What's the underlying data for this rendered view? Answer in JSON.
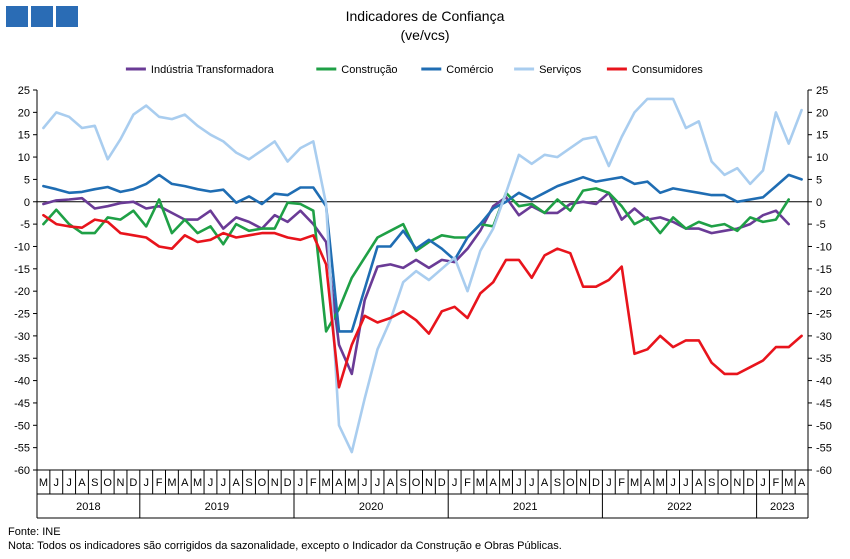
{
  "title": "Indicadores de Confiança",
  "subtitle": "(ve/vcs)",
  "source": "Fonte: INE",
  "note": "Nota: Todos os indicadores são corrigidos da sazonalidade,  excepto o Indicador da Construção e Obras Públicas.",
  "logo_icon": "ine-logo-icon",
  "chart_data": {
    "type": "line",
    "ylim": [
      -60,
      25
    ],
    "yticks": [
      25,
      20,
      15,
      10,
      5,
      0,
      -5,
      -10,
      -15,
      -20,
      -25,
      -30,
      -35,
      -40,
      -45,
      -50,
      -55,
      -60
    ],
    "grid": false,
    "legend_position": "top",
    "month_labels": [
      "M",
      "J",
      "J",
      "A",
      "S",
      "O",
      "N",
      "D",
      "J",
      "F",
      "M",
      "A",
      "M",
      "J",
      "J",
      "A",
      "S",
      "O",
      "N",
      "D",
      "J",
      "F",
      "M",
      "A",
      "M",
      "J",
      "J",
      "A",
      "S",
      "O",
      "N",
      "D",
      "J",
      "F",
      "M",
      "A",
      "M",
      "J",
      "J",
      "A",
      "S",
      "O",
      "N",
      "D",
      "J",
      "F",
      "M",
      "A",
      "M",
      "J",
      "J",
      "A",
      "S",
      "O",
      "N",
      "D",
      "J",
      "F",
      "M",
      "A"
    ],
    "years": [
      {
        "label": "2018",
        "start": 0,
        "end": 7
      },
      {
        "label": "2019",
        "start": 8,
        "end": 19
      },
      {
        "label": "2020",
        "start": 20,
        "end": 31
      },
      {
        "label": "2021",
        "start": 32,
        "end": 43
      },
      {
        "label": "2022",
        "start": 44,
        "end": 55
      },
      {
        "label": "2023",
        "start": 56,
        "end": 59
      }
    ],
    "series": [
      {
        "name": "Indústria Transformadora",
        "color": "#6a3b96",
        "values": [
          -0.5,
          0.3,
          0.5,
          0.8,
          -1.5,
          -1.0,
          -0.3,
          0.0,
          -1.5,
          -1.0,
          -2.5,
          -4.0,
          -4.0,
          -2.0,
          -6.0,
          -3.5,
          -4.5,
          -6.0,
          -3.0,
          -4.5,
          -2.0,
          -5.0,
          -9.0,
          -32.0,
          -38.5,
          -22.0,
          -14.5,
          -14.0,
          -14.8,
          -13.0,
          -14.8,
          -13.0,
          -13.5,
          -10.5,
          -6.5,
          -1.0,
          1.0,
          -3.0,
          -1.0,
          -2.5,
          -2.5,
          -0.5,
          0.0,
          -0.5,
          2.0,
          -4.0,
          -1.5,
          -4.0,
          -3.5,
          -4.5,
          -6.0,
          -6.0,
          -7.0,
          -6.5,
          -6.0,
          -5.0,
          -3.0,
          -2.0,
          -5.0,
          null
        ]
      },
      {
        "name": "Construção",
        "color": "#1fa046",
        "values": [
          -5.0,
          -1.8,
          -5.0,
          -7.0,
          -7.0,
          -3.5,
          -4.0,
          -2.0,
          -5.5,
          0.5,
          -7.0,
          -4.0,
          -7.0,
          -5.5,
          -9.5,
          -5.0,
          -6.5,
          -6.0,
          -6.0,
          -0.2,
          -0.5,
          -2.0,
          -29.0,
          -24.0,
          -17.0,
          -12.5,
          -8.0,
          -6.5,
          -5.0,
          -11.0,
          -9.0,
          -7.5,
          -8.0,
          -8.0,
          -5.0,
          -5.5,
          2.0,
          -1.0,
          -0.5,
          -2.5,
          0.5,
          -2.0,
          2.5,
          3.0,
          2.0,
          -1.0,
          -5.0,
          -3.5,
          -7.0,
          -3.5,
          -6.0,
          -4.5,
          -5.5,
          -5.0,
          -6.5,
          -3.5,
          -4.5,
          -4.0,
          0.5,
          null
        ]
      },
      {
        "name": "Comércio",
        "color": "#1f6db3",
        "values": [
          3.5,
          2.8,
          2.0,
          2.2,
          2.8,
          3.3,
          2.2,
          2.8,
          4.0,
          6.0,
          4.0,
          3.5,
          2.8,
          2.3,
          2.7,
          -0.2,
          1.2,
          -0.5,
          1.8,
          1.5,
          3.2,
          3.2,
          -1.0,
          -29.0,
          -29.0,
          -19.5,
          -10.0,
          -10.0,
          -6.5,
          -10.5,
          -8.5,
          -10.5,
          -13.0,
          -8.0,
          -5.0,
          -1.5,
          0.0,
          2.0,
          0.5,
          2.0,
          3.5,
          4.5,
          5.5,
          4.5,
          5.0,
          5.5,
          4.0,
          4.5,
          2.0,
          3.0,
          2.5,
          2.0,
          1.5,
          1.5,
          0.0,
          0.5,
          1.0,
          3.5,
          6.0,
          5.0
        ]
      },
      {
        "name": "Serviços",
        "color": "#a9cdef",
        "values": [
          16.5,
          20.0,
          19.0,
          16.5,
          17.0,
          9.5,
          14.0,
          19.5,
          21.5,
          19.0,
          18.5,
          19.5,
          17.0,
          15.0,
          13.5,
          11.0,
          9.5,
          11.5,
          13.5,
          9.0,
          12.0,
          13.5,
          -0.5,
          -50.0,
          -56.0,
          -44.0,
          -33.0,
          -26.5,
          -18.0,
          -15.5,
          -17.5,
          -15.0,
          -12.5,
          -20.0,
          -11.0,
          -6.0,
          2.0,
          10.5,
          8.5,
          10.5,
          10.0,
          12.0,
          14.0,
          14.5,
          8.0,
          14.5,
          20.0,
          23.0,
          23.0,
          23.0,
          16.5,
          18.0,
          9.0,
          6.0,
          7.5,
          4.0,
          7.0,
          20.0,
          13.0,
          20.5
        ]
      },
      {
        "name": "Consumidores",
        "color": "#e8141c",
        "values": [
          -3.0,
          -5.0,
          -5.5,
          -5.8,
          -4.0,
          -4.5,
          -7.0,
          -7.5,
          -8.0,
          -10.0,
          -10.5,
          -7.5,
          -9.0,
          -8.5,
          -7.0,
          -8.0,
          -7.5,
          -7.0,
          -7.0,
          -8.0,
          -8.5,
          -7.5,
          -14.0,
          -41.5,
          -32.0,
          -25.5,
          -27.0,
          -26.0,
          -24.5,
          -26.5,
          -29.5,
          -24.5,
          -23.5,
          -26.0,
          -20.5,
          -18.0,
          -13.0,
          -13.0,
          -17.0,
          -12.0,
          -10.5,
          -11.5,
          -19.0,
          -19.0,
          -17.5,
          -14.5,
          -34.0,
          -33.0,
          -30.0,
          -32.5,
          -31.0,
          -31.0,
          -36.0,
          -38.5,
          -38.5,
          -37.0,
          -35.5,
          -32.5,
          -32.5,
          -30.0
        ]
      }
    ]
  }
}
